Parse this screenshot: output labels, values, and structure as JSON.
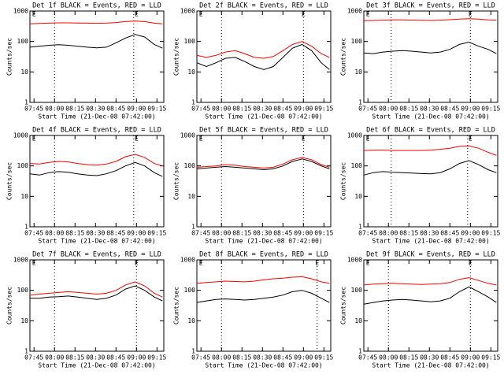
{
  "chart_data": [
    {
      "type": "line",
      "title": "Det 1f BLACK = Events, RED = LLD",
      "xlabel": "Start Time (21-Dec-08 07:42:00)",
      "ylabel": "Counts/sec",
      "log_y": true,
      "x": [
        0,
        7,
        14,
        21,
        28,
        35,
        42,
        49,
        56,
        63,
        70,
        77,
        84,
        91,
        97
      ],
      "xlim": [
        0,
        98
      ],
      "ylim": [
        1,
        1000
      ],
      "yticks": [
        1,
        10,
        100,
        1000
      ],
      "xticks": [
        {
          "value": 3,
          "label": "07:45"
        },
        {
          "value": 18,
          "label": "08:00"
        },
        {
          "value": 33,
          "label": "08:15"
        },
        {
          "value": 48,
          "label": "08:30"
        },
        {
          "value": 63,
          "label": "08:45"
        },
        {
          "value": 78,
          "label": "09:00"
        },
        {
          "value": 93,
          "label": "09:15"
        }
      ],
      "vlines": [
        18,
        76
      ],
      "markers": [
        {
          "label": "E",
          "x": 3
        },
        {
          "label": "E",
          "x": 78
        }
      ],
      "series": [
        {
          "color": "#000000",
          "values": [
            65,
            70,
            75,
            78,
            75,
            70,
            65,
            62,
            65,
            90,
            130,
            170,
            140,
            80,
            60
          ]
        },
        {
          "color": "#ff0000",
          "values": [
            380,
            390,
            400,
            410,
            410,
            405,
            400,
            395,
            400,
            420,
            450,
            470,
            450,
            400,
            380
          ]
        }
      ]
    },
    {
      "type": "line",
      "title": "Det 2f BLACK = Events, RED = LLD",
      "xlabel": "Start Time (21-Dec-08 07:42:00)",
      "ylabel": "Counts/sec",
      "log_y": true,
      "x": [
        0,
        7,
        14,
        21,
        28,
        35,
        42,
        49,
        56,
        63,
        70,
        77,
        84,
        91,
        97
      ],
      "xlim": [
        0,
        98
      ],
      "ylim": [
        1,
        1000
      ],
      "yticks": [
        1,
        10,
        100,
        1000
      ],
      "xticks": [
        {
          "value": 3,
          "label": "07:45"
        },
        {
          "value": 18,
          "label": "08:00"
        },
        {
          "value": 33,
          "label": "08:15"
        },
        {
          "value": 48,
          "label": "08:30"
        },
        {
          "value": 63,
          "label": "08:45"
        },
        {
          "value": 78,
          "label": "09:00"
        },
        {
          "value": 93,
          "label": "09:15"
        }
      ],
      "vlines": [
        18,
        78
      ],
      "markers": [
        {
          "label": "E",
          "x": 3
        },
        {
          "label": "E",
          "x": 78
        }
      ],
      "series": [
        {
          "color": "#000000",
          "values": [
            20,
            15,
            20,
            28,
            30,
            22,
            15,
            12,
            15,
            30,
            60,
            80,
            50,
            20,
            12
          ]
        },
        {
          "color": "#ff0000",
          "values": [
            35,
            30,
            35,
            45,
            50,
            40,
            30,
            28,
            32,
            50,
            80,
            100,
            70,
            40,
            30
          ]
        }
      ]
    },
    {
      "type": "line",
      "title": "Det 3f BLACK = Events, RED = LLD",
      "xlabel": "Start Time (21-Dec-08 07:42:00)",
      "ylabel": "Counts/sec",
      "log_y": true,
      "x": [
        0,
        7,
        14,
        21,
        28,
        35,
        42,
        49,
        56,
        63,
        70,
        77,
        84,
        91,
        97
      ],
      "xlim": [
        0,
        98
      ],
      "ylim": [
        1,
        1000
      ],
      "yticks": [
        1,
        10,
        100,
        1000
      ],
      "xticks": [
        {
          "value": 3,
          "label": "07:45"
        },
        {
          "value": 18,
          "label": "08:00"
        },
        {
          "value": 33,
          "label": "08:15"
        },
        {
          "value": 48,
          "label": "08:30"
        },
        {
          "value": 63,
          "label": "08:45"
        },
        {
          "value": 78,
          "label": "09:00"
        },
        {
          "value": 93,
          "label": "09:15"
        }
      ],
      "vlines": [
        20,
        78
      ],
      "markers": [
        {
          "label": "E",
          "x": 3
        },
        {
          "label": "E",
          "x": 78
        }
      ],
      "series": [
        {
          "color": "#000000",
          "values": [
            42,
            40,
            45,
            48,
            50,
            48,
            45,
            42,
            45,
            55,
            80,
            95,
            70,
            55,
            40
          ]
        },
        {
          "color": "#ff0000",
          "values": [
            480,
            490,
            500,
            510,
            510,
            500,
            495,
            490,
            500,
            520,
            540,
            560,
            540,
            510,
            500
          ]
        }
      ]
    },
    {
      "type": "line",
      "title": "Det 4f BLACK = Events, RED = LLD",
      "xlabel": "Start Time (21-Dec-08 07:42:00)",
      "ylabel": "Counts/sec",
      "log_y": true,
      "x": [
        0,
        7,
        14,
        21,
        28,
        35,
        42,
        49,
        56,
        63,
        70,
        77,
        84,
        91,
        97
      ],
      "xlim": [
        0,
        98
      ],
      "ylim": [
        1,
        1000
      ],
      "yticks": [
        1,
        10,
        100,
        1000
      ],
      "xticks": [
        {
          "value": 3,
          "label": "07:45"
        },
        {
          "value": 18,
          "label": "08:00"
        },
        {
          "value": 33,
          "label": "08:15"
        },
        {
          "value": 48,
          "label": "08:30"
        },
        {
          "value": 63,
          "label": "08:45"
        },
        {
          "value": 78,
          "label": "09:00"
        },
        {
          "value": 93,
          "label": "09:15"
        }
      ],
      "vlines": [
        18,
        76
      ],
      "markers": [
        {
          "label": "E",
          "x": 3
        },
        {
          "label": "E",
          "x": 78
        }
      ],
      "series": [
        {
          "color": "#000000",
          "values": [
            55,
            50,
            60,
            65,
            62,
            55,
            50,
            48,
            55,
            70,
            100,
            130,
            100,
            60,
            45
          ]
        },
        {
          "color": "#ff0000",
          "values": [
            120,
            115,
            130,
            140,
            135,
            120,
            110,
            105,
            115,
            140,
            200,
            240,
            190,
            120,
            100
          ]
        }
      ]
    },
    {
      "type": "line",
      "title": "Det 5f BLACK = Events, RED = LLD",
      "xlabel": "Start Time (21-Dec-08 07:42:00)",
      "ylabel": "Counts/sec",
      "log_y": true,
      "x": [
        0,
        7,
        14,
        21,
        28,
        35,
        42,
        49,
        56,
        63,
        70,
        77,
        84,
        91,
        97
      ],
      "xlim": [
        0,
        98
      ],
      "ylim": [
        1,
        1000
      ],
      "yticks": [
        1,
        10,
        100,
        1000
      ],
      "xticks": [
        {
          "value": 3,
          "label": "07:45"
        },
        {
          "value": 18,
          "label": "08:00"
        },
        {
          "value": 33,
          "label": "08:15"
        },
        {
          "value": 48,
          "label": "08:30"
        },
        {
          "value": 63,
          "label": "08:45"
        },
        {
          "value": 78,
          "label": "09:00"
        },
        {
          "value": 93,
          "label": "09:15"
        }
      ],
      "vlines": [
        18,
        78
      ],
      "markers": [
        {
          "label": "E",
          "x": 3
        },
        {
          "label": "E",
          "x": 78
        }
      ],
      "series": [
        {
          "color": "#000000",
          "values": [
            80,
            85,
            90,
            95,
            90,
            85,
            80,
            75,
            80,
            100,
            140,
            170,
            140,
            100,
            80
          ]
        },
        {
          "color": "#ff0000",
          "values": [
            90,
            95,
            100,
            110,
            105,
            95,
            90,
            85,
            90,
            115,
            160,
            190,
            160,
            110,
            90
          ]
        }
      ]
    },
    {
      "type": "line",
      "title": "Det 6f BLACK = Events, RED = LLD",
      "xlabel": "Start Time (21-Dec-08 07:42:00)",
      "ylabel": "Counts/sec",
      "log_y": true,
      "x": [
        0,
        7,
        14,
        21,
        28,
        35,
        42,
        49,
        56,
        63,
        70,
        77,
        84,
        91,
        97
      ],
      "xlim": [
        0,
        98
      ],
      "ylim": [
        1,
        1000
      ],
      "yticks": [
        1,
        10,
        100,
        1000
      ],
      "xticks": [
        {
          "value": 3,
          "label": "07:45"
        },
        {
          "value": 18,
          "label": "08:00"
        },
        {
          "value": 33,
          "label": "08:15"
        },
        {
          "value": 48,
          "label": "08:30"
        },
        {
          "value": 63,
          "label": "08:45"
        },
        {
          "value": 78,
          "label": "09:00"
        },
        {
          "value": 93,
          "label": "09:15"
        }
      ],
      "vlines": [
        20,
        76
      ],
      "markers": [
        {
          "label": "E",
          "x": 3
        },
        {
          "label": "E",
          "x": 78
        }
      ],
      "series": [
        {
          "color": "#000000",
          "values": [
            50,
            60,
            65,
            62,
            60,
            58,
            56,
            55,
            60,
            80,
            120,
            150,
            110,
            75,
            60
          ]
        },
        {
          "color": "#ff0000",
          "values": [
            320,
            330,
            330,
            320,
            320,
            320,
            320,
            330,
            350,
            380,
            440,
            450,
            380,
            280,
            220
          ]
        }
      ]
    },
    {
      "type": "line",
      "title": "Det 7f BLACK = Events, RED = LLD",
      "xlabel": "Start Time (21-Dec-08 07:42:00)",
      "ylabel": "Counts/sec",
      "log_y": true,
      "x": [
        0,
        7,
        14,
        21,
        28,
        35,
        42,
        49,
        56,
        63,
        70,
        77,
        84,
        91,
        97
      ],
      "xlim": [
        0,
        98
      ],
      "ylim": [
        1,
        1000
      ],
      "yticks": [
        1,
        10,
        100,
        1000
      ],
      "xticks": [
        {
          "value": 3,
          "label": "07:45"
        },
        {
          "value": 18,
          "label": "08:00"
        },
        {
          "value": 33,
          "label": "08:15"
        },
        {
          "value": 48,
          "label": "08:30"
        },
        {
          "value": 63,
          "label": "08:45"
        },
        {
          "value": 78,
          "label": "09:00"
        },
        {
          "value": 93,
          "label": "09:15"
        }
      ],
      "vlines": [
        18,
        78
      ],
      "markers": [
        {
          "label": "E",
          "x": 3
        },
        {
          "label": "E",
          "x": 78
        }
      ],
      "series": [
        {
          "color": "#000000",
          "values": [
            55,
            55,
            60,
            62,
            65,
            60,
            55,
            50,
            55,
            70,
            110,
            140,
            100,
            60,
            45
          ]
        },
        {
          "color": "#ff0000",
          "values": [
            70,
            75,
            80,
            85,
            90,
            85,
            80,
            75,
            80,
            100,
            150,
            190,
            140,
            80,
            60
          ]
        }
      ]
    },
    {
      "type": "line",
      "title": "Det 8f BLACK = Events, RED = LLD",
      "xlabel": "Start Time (21-Dec-08 07:42:00)",
      "ylabel": "Counts/sec",
      "log_y": true,
      "x": [
        0,
        7,
        14,
        21,
        28,
        35,
        42,
        49,
        56,
        63,
        70,
        77,
        84,
        91,
        97
      ],
      "xlim": [
        0,
        98
      ],
      "ylim": [
        1,
        1000
      ],
      "yticks": [
        1,
        10,
        100,
        1000
      ],
      "xticks": [
        {
          "value": 3,
          "label": "07:45"
        },
        {
          "value": 18,
          "label": "08:00"
        },
        {
          "value": 33,
          "label": "08:15"
        },
        {
          "value": 48,
          "label": "08:30"
        },
        {
          "value": 63,
          "label": "08:45"
        },
        {
          "value": 78,
          "label": "09:00"
        },
        {
          "value": 93,
          "label": "09:15"
        }
      ],
      "vlines": [
        18,
        88
      ],
      "markers": [
        {
          "label": "E",
          "x": 3
        },
        {
          "label": "E",
          "x": 88
        }
      ],
      "series": [
        {
          "color": "#000000",
          "values": [
            40,
            45,
            50,
            52,
            50,
            48,
            50,
            55,
            60,
            70,
            90,
            100,
            80,
            55,
            40
          ]
        },
        {
          "color": "#ff0000",
          "values": [
            170,
            180,
            190,
            200,
            195,
            190,
            200,
            220,
            240,
            250,
            270,
            280,
            240,
            190,
            170
          ]
        }
      ]
    },
    {
      "type": "line",
      "title": "Det 9f BLACK = Events, RED = LLD",
      "xlabel": "Start Time (21-Dec-08 07:42:00)",
      "ylabel": "Counts/sec",
      "log_y": true,
      "x": [
        0,
        7,
        14,
        21,
        28,
        35,
        42,
        49,
        56,
        63,
        70,
        77,
        84,
        91,
        97
      ],
      "xlim": [
        0,
        98
      ],
      "ylim": [
        1,
        1000
      ],
      "yticks": [
        1,
        10,
        100,
        1000
      ],
      "xticks": [
        {
          "value": 3,
          "label": "07:45"
        },
        {
          "value": 18,
          "label": "08:00"
        },
        {
          "value": 33,
          "label": "08:15"
        },
        {
          "value": 48,
          "label": "08:30"
        },
        {
          "value": 63,
          "label": "08:45"
        },
        {
          "value": 78,
          "label": "09:00"
        },
        {
          "value": 93,
          "label": "09:15"
        }
      ],
      "vlines": [
        18,
        78
      ],
      "markers": [
        {
          "label": "E",
          "x": 3
        },
        {
          "label": "E",
          "x": 78
        }
      ],
      "series": [
        {
          "color": "#000000",
          "values": [
            35,
            40,
            45,
            48,
            50,
            48,
            45,
            42,
            45,
            55,
            90,
            130,
            90,
            60,
            40
          ]
        },
        {
          "color": "#ff0000",
          "values": [
            150,
            160,
            165,
            170,
            165,
            160,
            155,
            160,
            165,
            180,
            230,
            260,
            210,
            170,
            150
          ]
        }
      ]
    }
  ]
}
